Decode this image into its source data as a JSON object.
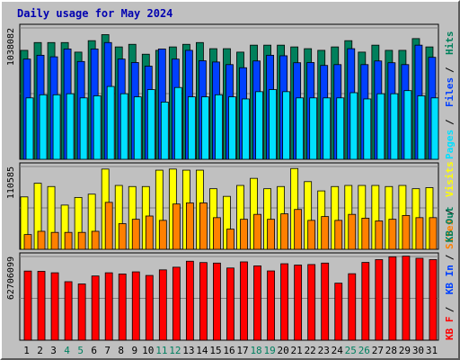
{
  "chart_data": {
    "type": "bar",
    "title": "Daily usage for May 2024",
    "x": [
      "1",
      "2",
      "3",
      "4",
      "5",
      "6",
      "7",
      "8",
      "9",
      "10",
      "11",
      "12",
      "13",
      "14",
      "15",
      "16",
      "17",
      "18",
      "19",
      "20",
      "21",
      "22",
      "23",
      "24",
      "25",
      "26",
      "27",
      "28",
      "29",
      "30",
      "31"
    ],
    "weekend_days": [
      "4",
      "5",
      "11",
      "12",
      "18",
      "19",
      "25",
      "26"
    ],
    "panels": [
      {
        "id": "top",
        "y_tick_label": "1038082",
        "ymax": 1280000,
        "side_labels": [
          "Pages",
          "Files",
          "Hits"
        ],
        "series": [
          {
            "name": "Hits",
            "color": "#00805c",
            "values": [
              1047000,
              1122000,
              1122000,
              1122000,
              1030000,
              1140000,
              1198000,
              1080000,
              1105000,
              1010000,
              1047000,
              1080000,
              1105000,
              1122000,
              1063000,
              1063000,
              1030000,
              1097000,
              1097000,
              1097000,
              1080000,
              1063000,
              1047000,
              1080000,
              1140000,
              1030000,
              1097000,
              1047000,
              1047000,
              1160000,
              1080000
            ]
          },
          {
            "name": "Files",
            "color": "#0040ff",
            "values": [
              963000,
              1000000,
              985000,
              1060000,
              940000,
              1060000,
              1122000,
              963000,
              930000,
              895000,
              1060000,
              963000,
              1047000,
              947000,
              935000,
              910000,
              880000,
              945000,
              1000000,
              995000,
              928000,
              930000,
              902000,
              910000,
              1063000,
              910000,
              945000,
              928000,
              910000,
              1097000,
              980000
            ]
          },
          {
            "name": "Pages",
            "color": "#00e0ff",
            "values": [
              590000,
              620000,
              620000,
              630000,
              590000,
              610000,
              700000,
              630000,
              600000,
              670000,
              550000,
              690000,
              600000,
              600000,
              620000,
              600000,
              580000,
              650000,
              670000,
              650000,
              590000,
              590000,
              590000,
              590000,
              640000,
              580000,
              630000,
              630000,
              660000,
              610000,
              590000
            ]
          }
        ]
      },
      {
        "id": "middle",
        "y_tick_label": "110585",
        "ymax": 155000,
        "side_labels": [
          "Sites",
          "Visits"
        ],
        "series": [
          {
            "name": "Visits",
            "color": "#ffff00",
            "values": [
              96000,
              121000,
              115000,
              81000,
              95000,
              101000,
              147000,
              117000,
              115000,
              115000,
              145000,
              147000,
              145000,
              145000,
              111000,
              97000,
              117000,
              130000,
              111000,
              115000,
              148000,
              124000,
              107000,
              115000,
              117000,
              117000,
              117000,
              115000,
              117000,
              111000,
              113000
            ]
          },
          {
            "name": "Sites",
            "color": "#ff8000",
            "values": [
              27000,
              33000,
              31000,
              31000,
              31000,
              33000,
              86000,
              47000,
              55000,
              61000,
              53000,
              83000,
              85000,
              85000,
              58000,
              37000,
              55000,
              64000,
              55000,
              65000,
              73000,
              53000,
              60000,
              53000,
              64000,
              57000,
              52000,
              55000,
              62000,
              58000,
              58000
            ]
          }
        ]
      },
      {
        "id": "bottom",
        "y_tick_label": "62706099",
        "ymax": 64300000,
        "side_labels": [
          "KB F",
          "KB In",
          "KB Out"
        ],
        "series": [
          {
            "name": "KB F",
            "color": "#ff0000",
            "values": [
              52000000,
              51800000,
              50700000,
              44000000,
              42300000,
              48300000,
              50700000,
              49800000,
              51400000,
              48700000,
              52900000,
              54900000,
              59400000,
              58400000,
              58000000,
              54300000,
              58900000,
              55900000,
              52100000,
              57500000,
              56500000,
              56900000,
              58000000,
              42900000,
              50000000,
              58500000,
              60600000,
              62700000,
              63200000,
              61600000,
              60600000
            ]
          }
        ]
      }
    ]
  }
}
